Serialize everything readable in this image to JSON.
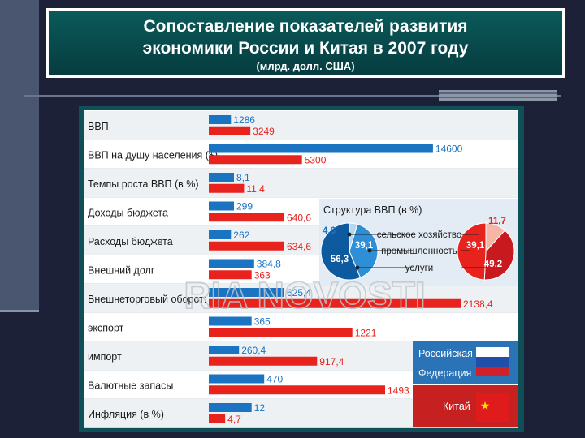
{
  "title_line1": "Сопоставление показателей развития",
  "title_line2": "экономики России и Китая в 2007 году",
  "subtitle": "(млрд. долл. США)",
  "watermark": "RIA NOVOSTI",
  "colors": {
    "russia": "#1a74c2",
    "china": "#e8231d",
    "frame": "#0f4f58",
    "title_bg": "#0b5a5a"
  },
  "chart_data": {
    "type": "bar",
    "orientation": "horizontal",
    "categories": [
      "ВВП",
      "ВВП на душу населения ($)",
      "Темпы роста ВВП (в %)",
      "Доходы бюджета",
      "Расходы бюджета",
      "Внешний долг",
      "Внешнеторговый оборот:",
      "экспорт",
      "импорт",
      "Валютные запасы",
      "Инфляция (в %)"
    ],
    "series": [
      {
        "name": "Российская Федерация",
        "values": [
          1286,
          14600,
          8.1,
          299,
          262,
          384.8,
          625.4,
          365,
          260.4,
          470,
          12
        ],
        "labels": [
          "1286",
          "14600",
          "8,1",
          "299",
          "262",
          "384,8",
          "625,4",
          "365",
          "260,4",
          "470",
          "12"
        ]
      },
      {
        "name": "Китай",
        "values": [
          3249,
          5300,
          11.4,
          640.6,
          634.6,
          363,
          2138.4,
          1221,
          917.4,
          1493,
          4.7
        ],
        "labels": [
          "3249",
          "5300",
          "11,4",
          "640,6",
          "634,6",
          "363",
          "2138,4",
          "1221",
          "917,4",
          "1493",
          "4,7"
        ]
      }
    ],
    "bar_fractions": {
      "russia": [
        0.088,
        0.89,
        0.1,
        0.1,
        0.088,
        0.18,
        0.3,
        0.17,
        0.12,
        0.22,
        0.17
      ],
      "china": [
        0.165,
        0.37,
        0.14,
        0.3,
        0.3,
        0.17,
        1.0,
        0.57,
        0.43,
        0.7,
        0.065
      ]
    },
    "inset": {
      "title": "Структура ВВП (в %)",
      "legend": [
        "сельское хозяйство",
        "промышленность",
        "услуги"
      ],
      "russia": [
        4.6,
        39.1,
        56.3
      ],
      "china": [
        11.7,
        39.1,
        49.2
      ],
      "russia_labels": [
        "4,6",
        "39,1",
        "56,3"
      ],
      "china_labels": [
        "11,7",
        "39,1",
        "49,2"
      ]
    },
    "legend": {
      "russia": "Российская Федерация",
      "china": "Китай"
    }
  }
}
